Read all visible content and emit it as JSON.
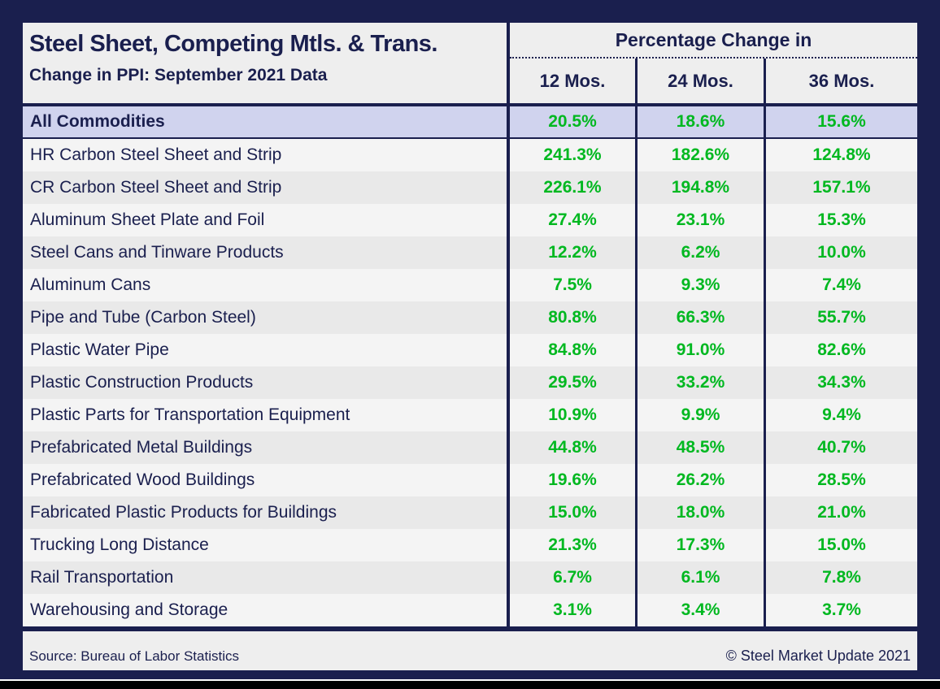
{
  "header": {
    "title": "Steel Sheet, Competing Mtls. & Trans.",
    "subtitle": "Change in PPI: September 2021 Data",
    "group_label": "Percentage Change in",
    "columns": [
      "12 Mos.",
      "24 Mos.",
      "36 Mos."
    ]
  },
  "rows": [
    {
      "label": "All Commodities",
      "values": [
        "20.5%",
        "18.6%",
        "15.6%"
      ],
      "highlight": true
    },
    {
      "label": "HR Carbon Steel Sheet and Strip",
      "values": [
        "241.3%",
        "182.6%",
        "124.8%"
      ],
      "highlight": false
    },
    {
      "label": "CR Carbon Steel Sheet and Strip",
      "values": [
        "226.1%",
        "194.8%",
        "157.1%"
      ],
      "highlight": false
    },
    {
      "label": "Aluminum Sheet Plate and Foil",
      "values": [
        "27.4%",
        "23.1%",
        "15.3%"
      ],
      "highlight": false
    },
    {
      "label": "Steel Cans and Tinware Products",
      "values": [
        "12.2%",
        "6.2%",
        "10.0%"
      ],
      "highlight": false
    },
    {
      "label": "Aluminum Cans",
      "values": [
        "7.5%",
        "9.3%",
        "7.4%"
      ],
      "highlight": false
    },
    {
      "label": "Pipe and Tube (Carbon Steel)",
      "values": [
        "80.8%",
        "66.3%",
        "55.7%"
      ],
      "highlight": false
    },
    {
      "label": "Plastic Water Pipe",
      "values": [
        "84.8%",
        "91.0%",
        "82.6%"
      ],
      "highlight": false
    },
    {
      "label": "Plastic Construction Products",
      "values": [
        "29.5%",
        "33.2%",
        "34.3%"
      ],
      "highlight": false
    },
    {
      "label": "Plastic Parts for Transportation Equipment",
      "values": [
        "10.9%",
        "9.9%",
        "9.4%"
      ],
      "highlight": false
    },
    {
      "label": "Prefabricated Metal Buildings",
      "values": [
        "44.8%",
        "48.5%",
        "40.7%"
      ],
      "highlight": false
    },
    {
      "label": "Prefabricated Wood Buildings",
      "values": [
        "19.6%",
        "26.2%",
        "28.5%"
      ],
      "highlight": false
    },
    {
      "label": "Fabricated Plastic Products for Buildings",
      "values": [
        "15.0%",
        "18.0%",
        "21.0%"
      ],
      "highlight": false
    },
    {
      "label": "Trucking Long Distance",
      "values": [
        "21.3%",
        "17.3%",
        "15.0%"
      ],
      "highlight": false
    },
    {
      "label": "Rail Transportation",
      "values": [
        "6.7%",
        "6.1%",
        "7.8%"
      ],
      "highlight": false
    },
    {
      "label": "Warehousing and Storage",
      "values": [
        "3.1%",
        "3.4%",
        "3.7%"
      ],
      "highlight": false
    }
  ],
  "footer": {
    "source": "Source: Bureau of Labor Statistics",
    "copyright": "© Steel Market Update 2021"
  },
  "colors": {
    "navy": "#1a1f4e",
    "panel_gray": "#eeeeee",
    "row_light": "#f4f4f4",
    "row_dark": "#e9e9e9",
    "highlight_lavender": "#d0d3ee",
    "value_green": "#00b820",
    "bottom_black": "#000000",
    "bottom_white": "#ffffff"
  },
  "chart_data": {
    "type": "table",
    "title": "Steel Sheet, Competing Mtls. & Trans.",
    "subtitle": "Change in PPI: September 2021 Data",
    "column_group": "Percentage Change in",
    "columns": [
      "12 Mos.",
      "24 Mos.",
      "36 Mos."
    ],
    "rows": [
      {
        "label": "All Commodities",
        "values": [
          20.5,
          18.6,
          15.6
        ]
      },
      {
        "label": "HR Carbon Steel Sheet and Strip",
        "values": [
          241.3,
          182.6,
          124.8
        ]
      },
      {
        "label": "CR Carbon Steel Sheet and Strip",
        "values": [
          226.1,
          194.8,
          157.1
        ]
      },
      {
        "label": "Aluminum Sheet Plate and Foil",
        "values": [
          27.4,
          23.1,
          15.3
        ]
      },
      {
        "label": "Steel Cans and Tinware Products",
        "values": [
          12.2,
          6.2,
          10.0
        ]
      },
      {
        "label": "Aluminum Cans",
        "values": [
          7.5,
          9.3,
          7.4
        ]
      },
      {
        "label": "Pipe and Tube (Carbon Steel)",
        "values": [
          80.8,
          66.3,
          55.7
        ]
      },
      {
        "label": "Plastic Water Pipe",
        "values": [
          84.8,
          91.0,
          82.6
        ]
      },
      {
        "label": "Plastic Construction Products",
        "values": [
          29.5,
          33.2,
          34.3
        ]
      },
      {
        "label": "Plastic Parts for Transportation Equipment",
        "values": [
          10.9,
          9.9,
          9.4
        ]
      },
      {
        "label": "Prefabricated Metal Buildings",
        "values": [
          44.8,
          48.5,
          40.7
        ]
      },
      {
        "label": "Prefabricated Wood Buildings",
        "values": [
          19.6,
          26.2,
          28.5
        ]
      },
      {
        "label": "Fabricated Plastic Products for Buildings",
        "values": [
          15.0,
          18.0,
          21.0
        ]
      },
      {
        "label": "Trucking Long Distance",
        "values": [
          21.3,
          17.3,
          15.0
        ]
      },
      {
        "label": "Rail Transportation",
        "values": [
          6.7,
          6.1,
          7.8
        ]
      },
      {
        "label": "Warehousing and Storage",
        "values": [
          3.1,
          3.4,
          3.7
        ]
      }
    ],
    "units": "percent",
    "source": "Bureau of Labor Statistics",
    "copyright": "© Steel Market Update 2021"
  }
}
